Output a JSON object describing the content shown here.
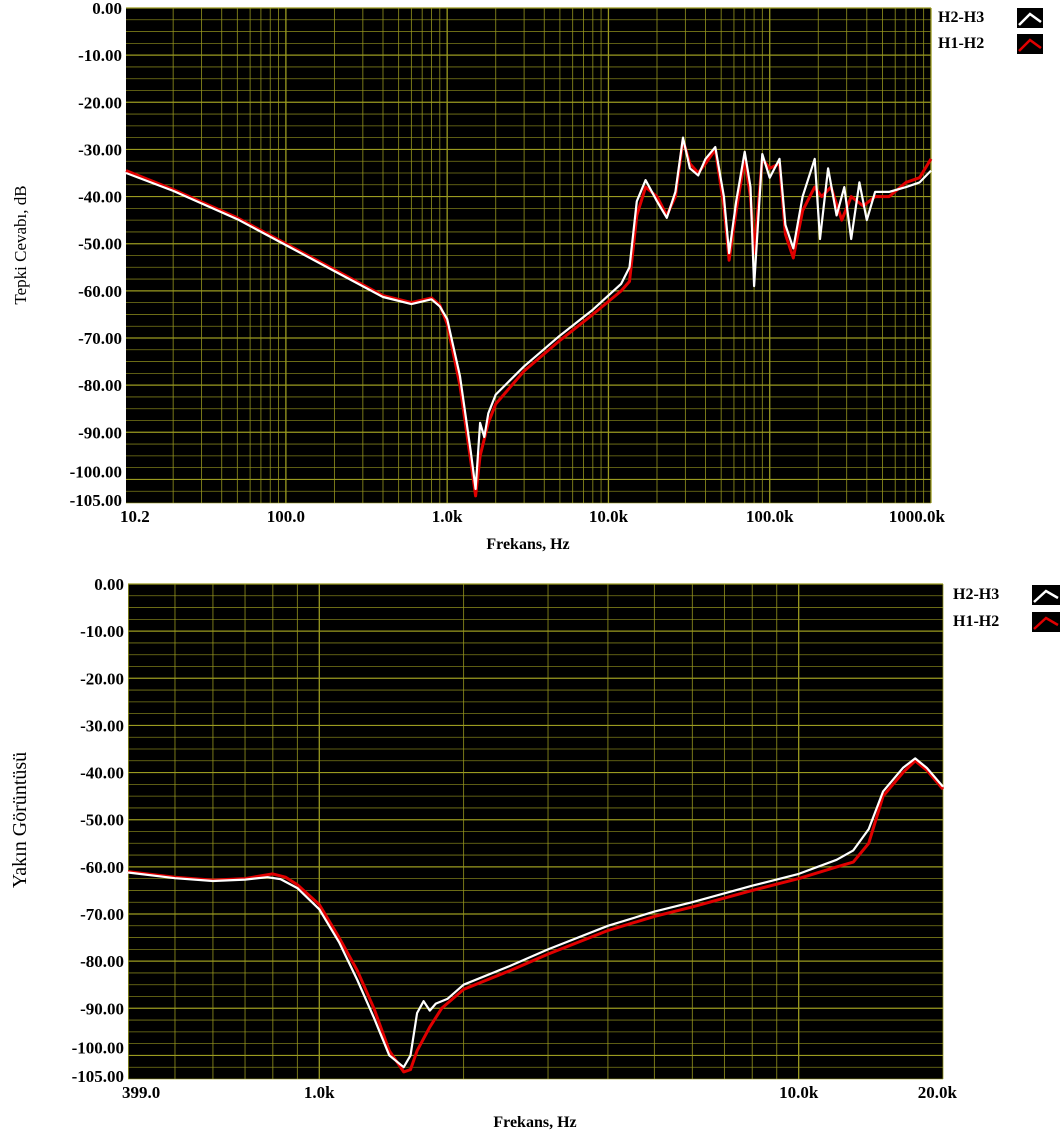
{
  "colors": {
    "plot_bg": "#000000",
    "grid": "#9a9a20",
    "series_white": "#ffffff",
    "series_red": "#e00000"
  },
  "chart_data": [
    {
      "type": "line",
      "xscale": "log",
      "xlabel": "Frekans, Hz",
      "ylabel": "Tepki Cevabı, dB",
      "xlim": [
        10.2,
        1000000
      ],
      "ylim": [
        -105,
        0
      ],
      "x_tick_values": [
        10.2,
        100,
        1000,
        10000,
        100000,
        1000000
      ],
      "x_tick_labels": [
        "10.2",
        "100.0",
        "1.0k",
        "10.0k",
        "100.0k",
        "1000.0k"
      ],
      "y_tick_values": [
        0,
        -10,
        -20,
        -30,
        -40,
        -50,
        -60,
        -70,
        -80,
        -90,
        -100,
        -105
      ],
      "y_tick_labels": [
        "0.00",
        "-10.00",
        "-20.00",
        "-30.00",
        "-40.00",
        "-50.00",
        "-60.00",
        "-70.00",
        "-80.00",
        "-90.00",
        "-100.00",
        "-105.00"
      ],
      "grid": true,
      "legend_position": "top-right",
      "series": [
        {
          "name": "H1-H2",
          "color": "#e00000",
          "points": [
            [
              10.2,
              -34.5
            ],
            [
              20,
              -38.5
            ],
            [
              50,
              -44.5
            ],
            [
              100,
              -50
            ],
            [
              200,
              -55.5
            ],
            [
              400,
              -61
            ],
            [
              600,
              -62.5
            ],
            [
              800,
              -61.5
            ],
            [
              900,
              -63
            ],
            [
              1000,
              -67
            ],
            [
              1200,
              -80
            ],
            [
              1400,
              -96
            ],
            [
              1500,
              -103.5
            ],
            [
              1600,
              -95
            ],
            [
              1800,
              -88
            ],
            [
              2000,
              -84
            ],
            [
              3000,
              -77
            ],
            [
              5000,
              -70.5
            ],
            [
              8000,
              -65
            ],
            [
              12000,
              -60
            ],
            [
              13500,
              -58
            ],
            [
              15000,
              -44
            ],
            [
              17000,
              -38
            ],
            [
              20000,
              -40
            ],
            [
              23000,
              -44
            ],
            [
              26000,
              -40
            ],
            [
              29000,
              -28
            ],
            [
              32000,
              -33
            ],
            [
              36000,
              -35
            ],
            [
              40000,
              -33
            ],
            [
              46000,
              -30
            ],
            [
              52000,
              -42
            ],
            [
              56000,
              -53.5
            ],
            [
              62000,
              -43
            ],
            [
              70000,
              -32
            ],
            [
              76000,
              -40
            ],
            [
              80000,
              -52
            ],
            [
              90000,
              -32
            ],
            [
              100000,
              -34
            ],
            [
              115000,
              -33
            ],
            [
              125000,
              -48
            ],
            [
              140000,
              -53
            ],
            [
              160000,
              -43
            ],
            [
              190000,
              -38
            ],
            [
              210000,
              -40
            ],
            [
              240000,
              -38
            ],
            [
              280000,
              -45
            ],
            [
              320000,
              -40
            ],
            [
              380000,
              -42
            ],
            [
              450000,
              -40
            ],
            [
              550000,
              -40
            ],
            [
              700000,
              -37
            ],
            [
              850000,
              -36
            ],
            [
              1000000,
              -32
            ]
          ]
        },
        {
          "name": "H2-H3",
          "color": "#ffffff",
          "points": [
            [
              10.2,
              -35
            ],
            [
              20,
              -38.8
            ],
            [
              50,
              -44.8
            ],
            [
              100,
              -50.3
            ],
            [
              200,
              -55.8
            ],
            [
              400,
              -61.3
            ],
            [
              600,
              -62.8
            ],
            [
              800,
              -61.8
            ],
            [
              900,
              -63.3
            ],
            [
              1000,
              -66
            ],
            [
              1200,
              -78
            ],
            [
              1400,
              -94
            ],
            [
              1500,
              -102
            ],
            [
              1600,
              -88
            ],
            [
              1700,
              -91
            ],
            [
              1800,
              -86
            ],
            [
              2000,
              -82
            ],
            [
              3000,
              -76
            ],
            [
              5000,
              -69.5
            ],
            [
              8000,
              -64
            ],
            [
              12000,
              -58.5
            ],
            [
              13500,
              -55
            ],
            [
              15000,
              -41
            ],
            [
              17000,
              -36.5
            ],
            [
              20000,
              -41
            ],
            [
              23000,
              -44.5
            ],
            [
              26000,
              -39
            ],
            [
              29000,
              -27.5
            ],
            [
              32000,
              -34
            ],
            [
              36000,
              -35.5
            ],
            [
              40000,
              -32
            ],
            [
              46000,
              -29.5
            ],
            [
              52000,
              -40
            ],
            [
              56000,
              -52
            ],
            [
              62000,
              -41
            ],
            [
              70000,
              -30.5
            ],
            [
              76000,
              -38
            ],
            [
              80000,
              -59
            ],
            [
              90000,
              -31
            ],
            [
              100000,
              -36
            ],
            [
              115000,
              -32
            ],
            [
              125000,
              -46
            ],
            [
              140000,
              -51
            ],
            [
              160000,
              -40
            ],
            [
              190000,
              -32
            ],
            [
              205000,
              -49
            ],
            [
              230000,
              -34
            ],
            [
              260000,
              -44
            ],
            [
              290000,
              -38
            ],
            [
              320000,
              -49
            ],
            [
              360000,
              -37
            ],
            [
              400000,
              -45
            ],
            [
              450000,
              -39
            ],
            [
              550000,
              -39
            ],
            [
              700000,
              -38
            ],
            [
              850000,
              -37
            ],
            [
              1000000,
              -34.5
            ]
          ]
        }
      ]
    },
    {
      "type": "line",
      "xscale": "log",
      "xlabel": "Frekans, Hz",
      "ylabel": "Yakın Görüntüsü",
      "xlim": [
        399,
        20000
      ],
      "ylim": [
        -105,
        0
      ],
      "x_tick_values": [
        399,
        1000,
        10000,
        20000
      ],
      "x_tick_labels": [
        "399.0",
        "1.0k",
        "10.0k",
        "20.0k"
      ],
      "y_tick_values": [
        0,
        -10,
        -20,
        -30,
        -40,
        -50,
        -60,
        -70,
        -80,
        -90,
        -100,
        -105
      ],
      "y_tick_labels": [
        "0.00",
        "-10.00",
        "-20.00",
        "-30.00",
        "-40.00",
        "-50.00",
        "-60.00",
        "-70.00",
        "-80.00",
        "-90.00",
        "-100.00",
        "-105.00"
      ],
      "grid": true,
      "legend_position": "top-right",
      "series": [
        {
          "name": "H1-H2",
          "color": "#e00000",
          "points": [
            [
              399,
              -61
            ],
            [
              500,
              -62.2
            ],
            [
              600,
              -62.8
            ],
            [
              700,
              -62.5
            ],
            [
              800,
              -61.5
            ],
            [
              850,
              -62.2
            ],
            [
              900,
              -63.8
            ],
            [
              1000,
              -68
            ],
            [
              1100,
              -75
            ],
            [
              1200,
              -82
            ],
            [
              1300,
              -90
            ],
            [
              1400,
              -99
            ],
            [
              1500,
              -103.5
            ],
            [
              1550,
              -103
            ],
            [
              1600,
              -99
            ],
            [
              1700,
              -94
            ],
            [
              1800,
              -90
            ],
            [
              2000,
              -86
            ],
            [
              2500,
              -82
            ],
            [
              3000,
              -78.5
            ],
            [
              4000,
              -73.5
            ],
            [
              5000,
              -70.5
            ],
            [
              6000,
              -68.5
            ],
            [
              8000,
              -65
            ],
            [
              10000,
              -62.5
            ],
            [
              12000,
              -60
            ],
            [
              13000,
              -59
            ],
            [
              14000,
              -55
            ],
            [
              15000,
              -45
            ],
            [
              16500,
              -40
            ],
            [
              17500,
              -37.5
            ],
            [
              18500,
              -39.5
            ],
            [
              20000,
              -43.5
            ]
          ]
        },
        {
          "name": "H2-H3",
          "color": "#ffffff",
          "points": [
            [
              399,
              -61.2
            ],
            [
              500,
              -62.4
            ],
            [
              600,
              -63
            ],
            [
              700,
              -62.7
            ],
            [
              780,
              -62.2
            ],
            [
              830,
              -62.6
            ],
            [
              900,
              -64.5
            ],
            [
              1000,
              -69
            ],
            [
              1100,
              -76
            ],
            [
              1200,
              -84
            ],
            [
              1300,
              -92
            ],
            [
              1400,
              -100
            ],
            [
              1500,
              -102.5
            ],
            [
              1550,
              -100
            ],
            [
              1600,
              -91
            ],
            [
              1650,
              -88.5
            ],
            [
              1700,
              -90.5
            ],
            [
              1750,
              -89
            ],
            [
              1850,
              -88
            ],
            [
              2000,
              -85
            ],
            [
              2500,
              -81
            ],
            [
              3000,
              -77.5
            ],
            [
              4000,
              -72.5
            ],
            [
              5000,
              -69.5
            ],
            [
              6000,
              -67.5
            ],
            [
              8000,
              -64
            ],
            [
              10000,
              -61.5
            ],
            [
              12000,
              -58.5
            ],
            [
              13000,
              -56.5
            ],
            [
              14000,
              -52
            ],
            [
              15000,
              -44
            ],
            [
              16500,
              -39
            ],
            [
              17500,
              -37
            ],
            [
              18500,
              -39
            ],
            [
              20000,
              -43
            ]
          ]
        }
      ]
    }
  ]
}
